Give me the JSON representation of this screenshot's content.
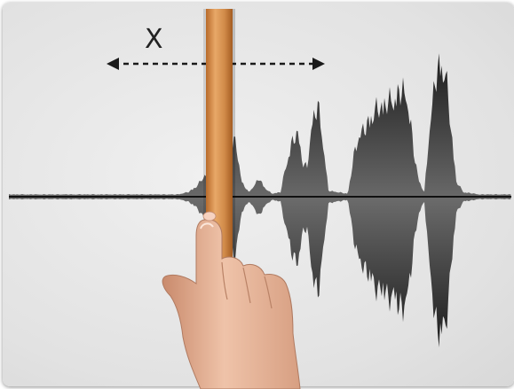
{
  "scrub_hint": {
    "label": "X",
    "arrow_style": "dashed-double-headed"
  },
  "colors": {
    "background": "#e6e6e6",
    "waveform_dark": "#1c1c1c",
    "waveform_mid": "#6a6a6a",
    "playhead_light": "#e8a868",
    "playhead_dark": "#b86a2a",
    "skin": "#e8b59a"
  },
  "icons": {
    "pointer": "hand-pointer-icon"
  },
  "playhead_position": 0.41
}
